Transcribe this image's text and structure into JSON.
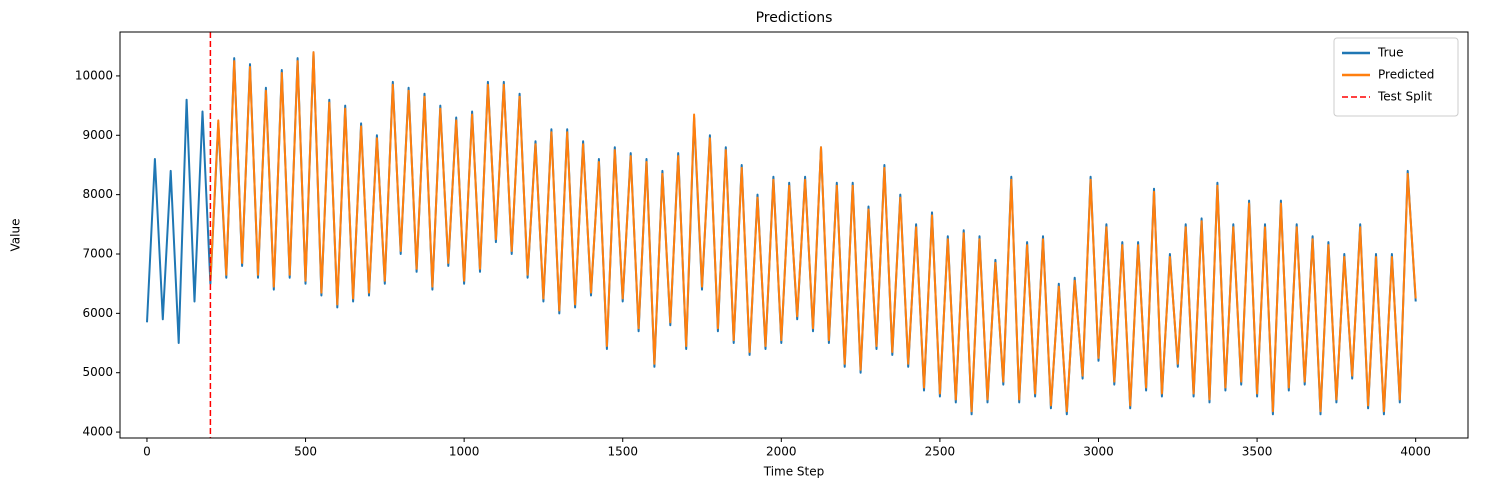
{
  "chart_data": {
    "type": "line",
    "title": "Predictions",
    "x_label": "Time Step",
    "y_label": "Value",
    "x": [
      0,
      25,
      50,
      75,
      100,
      125,
      150,
      175,
      200,
      225,
      250,
      275,
      300,
      325,
      350,
      375,
      400,
      425,
      450,
      475,
      500,
      525,
      550,
      575,
      600,
      625,
      650,
      675,
      700,
      725,
      750,
      775,
      800,
      825,
      850,
      875,
      900,
      925,
      950,
      975,
      1000,
      1025,
      1050,
      1075,
      1100,
      1125,
      1150,
      1175,
      1200,
      1225,
      1250,
      1275,
      1300,
      1325,
      1350,
      1375,
      1400,
      1425,
      1450,
      1475,
      1500,
      1525,
      1550,
      1575,
      1600,
      1625,
      1650,
      1675,
      1700,
      1725,
      1750,
      1775,
      1800,
      1825,
      1850,
      1875,
      1900,
      1925,
      1950,
      1975,
      2000,
      2025,
      2050,
      2075,
      2100,
      2125,
      2150,
      2175,
      2200,
      2225,
      2250,
      2275,
      2300,
      2325,
      2350,
      2375,
      2400,
      2425,
      2450,
      2475,
      2500,
      2525,
      2550,
      2575,
      2600,
      2625,
      2650,
      2675,
      2700,
      2725,
      2750,
      2775,
      2800,
      2825,
      2850,
      2875,
      2900,
      2925,
      2950,
      2975,
      3000,
      3025,
      3050,
      3075,
      3100,
      3125,
      3150,
      3175,
      3200,
      3225,
      3250,
      3275,
      3300,
      3325,
      3350,
      3375,
      3400,
      3425,
      3450,
      3475,
      3500,
      3525,
      3550,
      3575,
      3600,
      3625,
      3650,
      3675,
      3700,
      3725,
      3750,
      3775,
      3800,
      3825,
      3850,
      3875,
      3900,
      3925,
      3950,
      3975,
      4000
    ],
    "series": [
      {
        "name": "True",
        "color": "#1f77b4",
        "values": [
          5850,
          8600,
          5900,
          8400,
          5500,
          9600,
          6200,
          9400,
          6500,
          9200,
          6600,
          10300,
          6800,
          10200,
          6600,
          9800,
          6400,
          10100,
          6600,
          10300,
          6500,
          10400,
          6300,
          9600,
          6100,
          9500,
          6200,
          9200,
          6300,
          9000,
          6500,
          9900,
          7000,
          9800,
          6700,
          9700,
          6400,
          9500,
          6800,
          9300,
          6500,
          9400,
          6700,
          9900,
          7200,
          9900,
          7000,
          9700,
          6600,
          8900,
          6200,
          9100,
          6000,
          9100,
          6100,
          8900,
          6300,
          8600,
          5400,
          8800,
          6200,
          8700,
          5700,
          8600,
          5100,
          8400,
          5800,
          8700,
          5400,
          9300,
          6400,
          9000,
          5700,
          8800,
          5500,
          8500,
          5300,
          8000,
          5400,
          8300,
          5500,
          8200,
          5900,
          8300,
          5700,
          8800,
          5500,
          8200,
          5100,
          8200,
          5000,
          7800,
          5400,
          8500,
          5300,
          8000,
          5100,
          7500,
          4700,
          7700,
          4600,
          7300,
          4500,
          7400,
          4300,
          7300,
          4500,
          6900,
          4800,
          8300,
          4500,
          7200,
          4600,
          7300,
          4400,
          6500,
          4300,
          6600,
          4900,
          8300,
          5200,
          7500,
          4800,
          7200,
          4400,
          7200,
          4700,
          8100,
          4600,
          7000,
          5100,
          7500,
          4600,
          7600,
          4500,
          8200,
          4700,
          7500,
          4800,
          7900,
          4600,
          7500,
          4300,
          7900,
          4700,
          7500,
          4800,
          7300,
          4300,
          7200,
          4500,
          7000,
          4900,
          7500,
          4400,
          7000,
          4300,
          7000,
          4500,
          8400,
          6200
        ]
      },
      {
        "name": "Predicted",
        "color": "#ff7f0e",
        "values": [
          null,
          null,
          null,
          null,
          null,
          null,
          null,
          null,
          6550,
          9250,
          6650,
          10250,
          6850,
          10150,
          6650,
          9750,
          6450,
          10050,
          6650,
          10250,
          6550,
          10400,
          6350,
          9550,
          6150,
          9450,
          6250,
          9150,
          6350,
          8950,
          6550,
          9850,
          7050,
          9750,
          6750,
          9650,
          6450,
          9450,
          6850,
          9250,
          6550,
          9350,
          6750,
          9850,
          7250,
          9850,
          7050,
          9650,
          6650,
          8850,
          6250,
          9050,
          6050,
          9050,
          6150,
          8850,
          6350,
          8550,
          5450,
          8750,
          6250,
          8650,
          5750,
          8550,
          5150,
          8350,
          5850,
          8650,
          5450,
          9350,
          6450,
          8950,
          5750,
          8750,
          5550,
          8450,
          5350,
          7950,
          5450,
          8250,
          5550,
          8150,
          5950,
          8250,
          5750,
          8800,
          5550,
          8150,
          5150,
          8150,
          5050,
          7750,
          5450,
          8450,
          5350,
          7950,
          5150,
          7450,
          4750,
          7650,
          4650,
          7250,
          4550,
          7350,
          4350,
          7250,
          4550,
          6850,
          4850,
          8250,
          4550,
          7150,
          4650,
          7250,
          4450,
          6450,
          4350,
          6550,
          4950,
          8250,
          5250,
          7450,
          4850,
          7150,
          4450,
          7150,
          4750,
          8050,
          4650,
          6950,
          5150,
          7450,
          4650,
          7550,
          4550,
          8150,
          4750,
          7450,
          4850,
          7850,
          4650,
          7450,
          4350,
          7850,
          4750,
          7450,
          4850,
          7250,
          4350,
          7150,
          4550,
          6950,
          4950,
          7450,
          4450,
          6950,
          4350,
          6950,
          4550,
          8350,
          6250
        ]
      }
    ],
    "vline": {
      "name": "Test Split",
      "x": 200,
      "color": "#ff0000"
    },
    "xlim": [
      -85,
      4165
    ],
    "xticks": [
      0,
      500,
      1000,
      1500,
      2000,
      2500,
      3000,
      3500,
      4000
    ],
    "ylim": [
      3900,
      10740
    ],
    "yticks": [
      4000,
      5000,
      6000,
      7000,
      8000,
      9000,
      10000
    ],
    "legend": "upper right"
  }
}
